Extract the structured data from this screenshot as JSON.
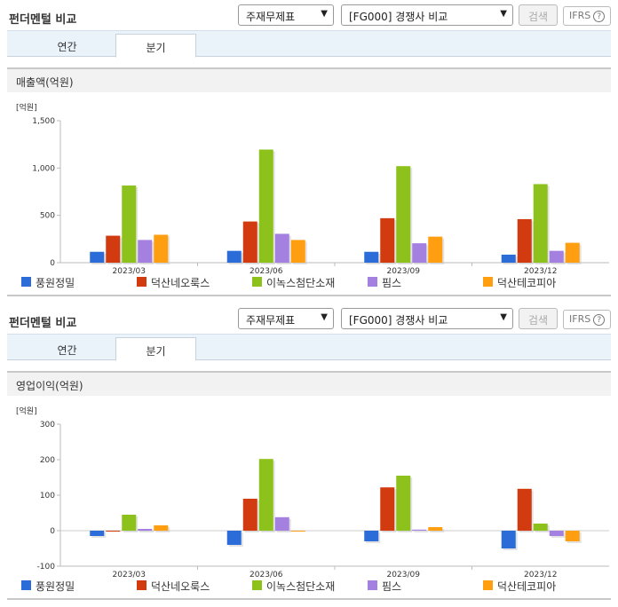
{
  "panels": [
    {
      "title": "펀더멘털 비교",
      "select_metric": "주재무제표",
      "select_group": "[FG000] 경쟁사 비교",
      "search_label": "검색",
      "ifrs_label": "IFRS",
      "ifrs_help": "?",
      "tabs": [
        {
          "label": "연간",
          "active": false
        },
        {
          "label": "분기",
          "active": true
        }
      ],
      "section_label": "매출액(억원)"
    },
    {
      "title": "펀더멘털 비교",
      "select_metric": "주재무제표",
      "select_group": "[FG000] 경쟁사 비교",
      "search_label": "검색",
      "ifrs_label": "IFRS",
      "ifrs_help": "?",
      "tabs": [
        {
          "label": "연간",
          "active": false
        },
        {
          "label": "분기",
          "active": true
        }
      ],
      "section_label": "영업이익(억원)"
    }
  ],
  "colors": [
    "#2c6cd8",
    "#d23a0f",
    "#8cc21b",
    "#a480e0",
    "#ff9e10"
  ],
  "chart_data": [
    {
      "type": "bar",
      "unit_label": "[억원]",
      "categories": [
        "2023/03",
        "2023/06",
        "2023/09",
        "2023/12"
      ],
      "ylim": [
        0,
        1500
      ],
      "yticks": [
        0,
        500,
        1000,
        1500
      ],
      "ytick_labels": [
        "0",
        "500",
        "1,000",
        "1,500"
      ],
      "series": [
        {
          "name": "풍원정밀",
          "values": [
            115,
            125,
            115,
            85
          ]
        },
        {
          "name": "덕산네오룩스",
          "values": [
            285,
            435,
            470,
            460
          ]
        },
        {
          "name": "이녹스첨단소재",
          "values": [
            815,
            1195,
            1020,
            830
          ]
        },
        {
          "name": "핌스",
          "values": [
            240,
            305,
            205,
            125
          ]
        },
        {
          "name": "덕산테코피아",
          "values": [
            295,
            240,
            275,
            210
          ]
        }
      ]
    },
    {
      "type": "bar",
      "unit_label": "[억원]",
      "categories": [
        "2023/03",
        "2023/06",
        "2023/09",
        "2023/12"
      ],
      "ylim": [
        -100,
        300
      ],
      "yticks": [
        -100,
        0,
        100,
        200,
        300
      ],
      "ytick_labels": [
        "-100",
        "0",
        "100",
        "200",
        "300"
      ],
      "series": [
        {
          "name": "풍원정밀",
          "values": [
            -15,
            -40,
            -30,
            -50
          ]
        },
        {
          "name": "덕산네오룩스",
          "values": [
            0,
            90,
            122,
            118
          ]
        },
        {
          "name": "이녹스첨단소재",
          "values": [
            45,
            202,
            155,
            20
          ]
        },
        {
          "name": "핌스",
          "values": [
            5,
            38,
            3,
            -15
          ]
        },
        {
          "name": "덕산테코피아",
          "values": [
            15,
            0,
            10,
            -30
          ]
        }
      ]
    }
  ]
}
